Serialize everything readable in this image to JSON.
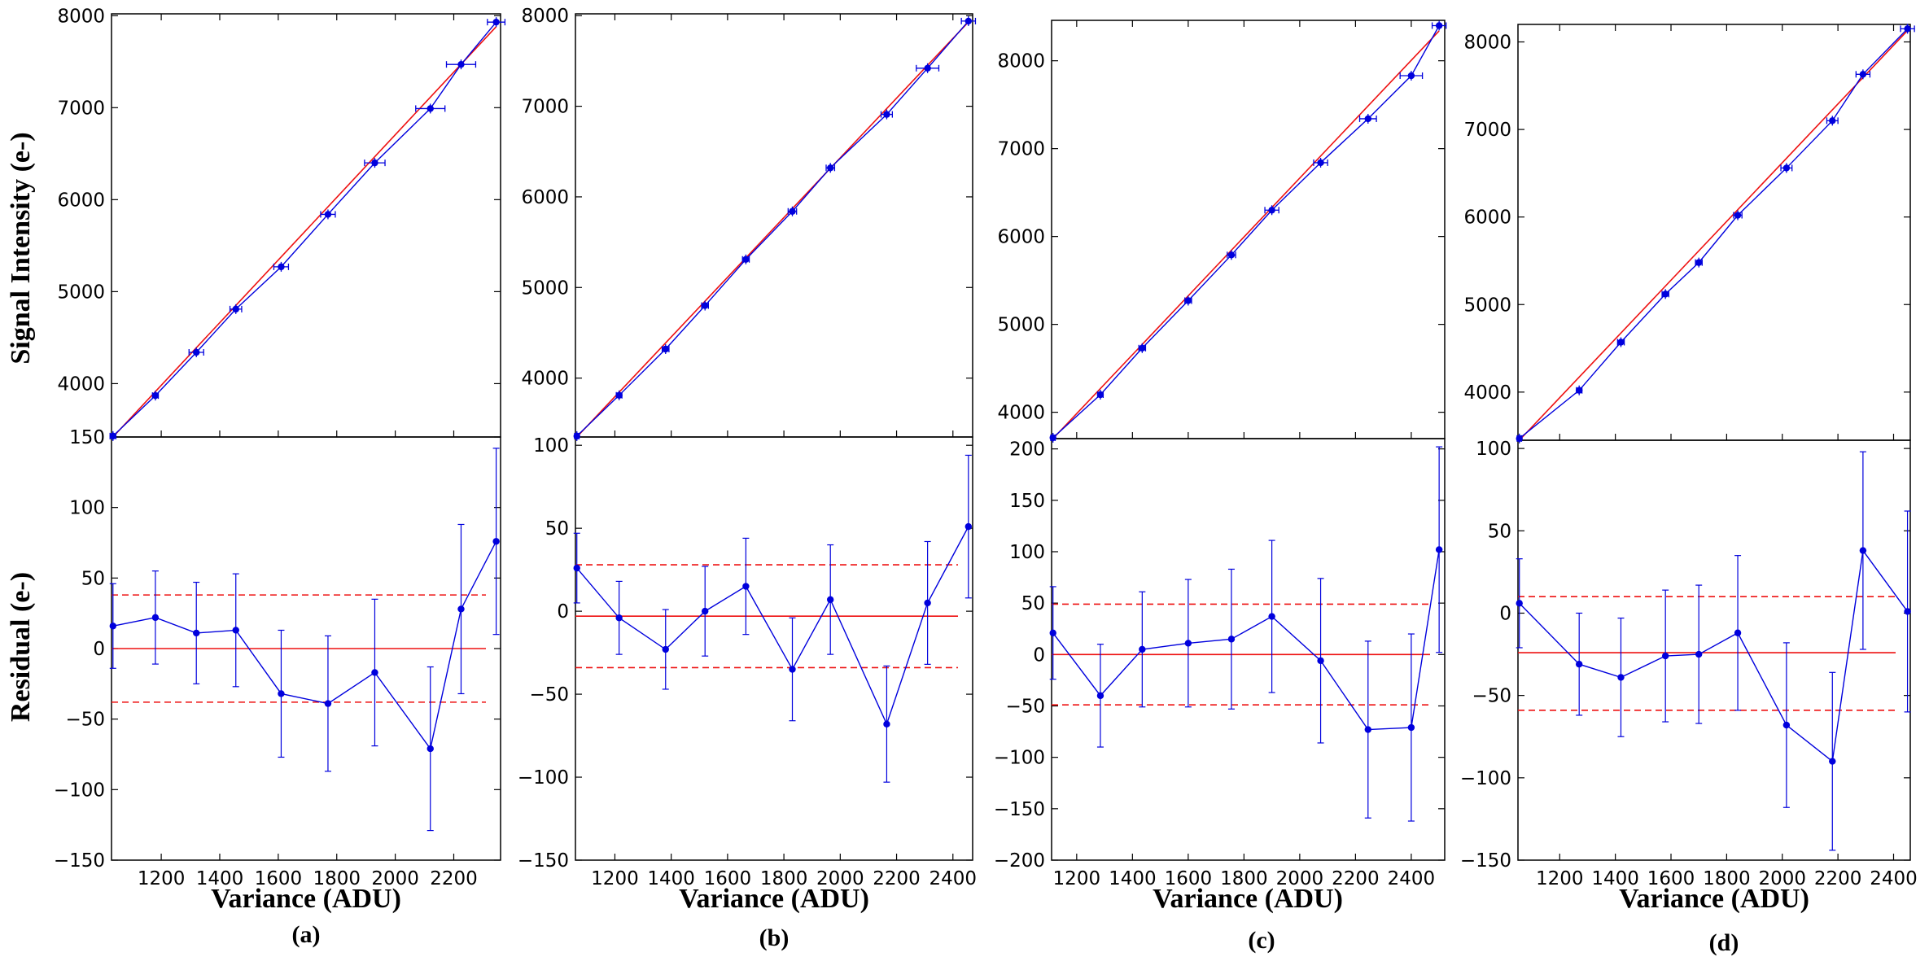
{
  "figure": {
    "ylabel_top": "Signal Intensity (e-)",
    "ylabel_bottom": "Residual  (e-)",
    "colors": {
      "data": "#0000dd",
      "fit": "#ee1111",
      "frame": "#000000"
    }
  },
  "chart_data": [
    {
      "type": "scatter",
      "panel_label": "(a)",
      "xlabel": "Variance (ADU)",
      "xlim": [
        1030,
        2360
      ],
      "xticks": [
        1200,
        1400,
        1600,
        1800,
        2000,
        2200
      ],
      "top": {
        "ylabel": "Signal Intensity (e-)",
        "ylim": [
          3420,
          8020
        ],
        "yticks": [
          4000,
          5000,
          6000,
          7000,
          8000
        ],
        "x": [
          1035,
          1180,
          1320,
          1455,
          1610,
          1770,
          1930,
          2120,
          2225,
          2345
        ],
        "y": [
          3430,
          3870,
          4340,
          4810,
          5270,
          5840,
          6400,
          6990,
          7470,
          7930
        ],
        "xerr": [
          10,
          10,
          25,
          20,
          25,
          25,
          35,
          50,
          50,
          30
        ],
        "fit": {
          "x": [
            1035,
            2345
          ],
          "y": [
            3420,
            7880
          ]
        }
      },
      "bottom": {
        "ylabel": "Residual  (e-)",
        "ylim": [
          -150,
          150
        ],
        "yticks": [
          -150,
          -100,
          -50,
          0,
          50,
          100,
          150
        ],
        "x": [
          1035,
          1180,
          1320,
          1455,
          1610,
          1770,
          1930,
          2120,
          2225,
          2345
        ],
        "y": [
          16,
          22,
          11,
          13,
          -32,
          -39,
          -17,
          -71,
          28,
          76
        ],
        "yerr": [
          30,
          33,
          36,
          40,
          45,
          48,
          52,
          58,
          60,
          66
        ],
        "fit_level": 0,
        "band": [
          -38,
          38
        ]
      }
    },
    {
      "type": "scatter",
      "panel_label": "(b)",
      "xlabel": "Variance (ADU)",
      "xlim": [
        1060,
        2470
      ],
      "xticks": [
        1200,
        1400,
        1600,
        1800,
        2000,
        2200,
        2400
      ],
      "top": {
        "ylabel": "Signal Intensity (e-)",
        "ylim": [
          3350,
          8020
        ],
        "yticks": [
          4000,
          5000,
          6000,
          7000,
          8000
        ],
        "x": [
          1065,
          1215,
          1380,
          1520,
          1665,
          1830,
          1965,
          2165,
          2310,
          2455
        ],
        "y": [
          3360,
          3810,
          4320,
          4800,
          5310,
          5840,
          6320,
          6910,
          7420,
          7940
        ],
        "xerr": [
          8,
          10,
          12,
          12,
          12,
          15,
          15,
          20,
          40,
          25
        ],
        "fit": {
          "x": [
            1065,
            2455
          ],
          "y": [
            3350,
            7930
          ]
        }
      },
      "bottom": {
        "ylabel": "Residual  (e-)",
        "ylim": [
          -150,
          105
        ],
        "yticks": [
          -150,
          -100,
          -50,
          0,
          50,
          100
        ],
        "x": [
          1065,
          1215,
          1380,
          1520,
          1665,
          1830,
          1965,
          2165,
          2310,
          2455
        ],
        "y": [
          26,
          -4,
          -23,
          0,
          15,
          -35,
          7,
          -68,
          5,
          51
        ],
        "yerr": [
          21,
          22,
          24,
          27,
          29,
          31,
          33,
          35,
          37,
          43
        ],
        "fit_level": -3,
        "band": [
          -34,
          28
        ]
      }
    },
    {
      "type": "scatter",
      "panel_label": "(c)",
      "xlabel": "Variance (ADU)",
      "xlim": [
        1110,
        2520
      ],
      "xticks": [
        1200,
        1400,
        1600,
        1800,
        2000,
        2200,
        2400
      ],
      "top": {
        "ylabel": "Signal Intensity (e-)",
        "ylim": [
          3700,
          8460
        ],
        "yticks": [
          4000,
          5000,
          6000,
          7000,
          8000
        ],
        "x": [
          1115,
          1285,
          1435,
          1600,
          1755,
          1900,
          2075,
          2245,
          2400,
          2500
        ],
        "y": [
          3710,
          4200,
          4730,
          5270,
          5790,
          6300,
          6840,
          7340,
          7830,
          8400
        ],
        "xerr": [
          8,
          10,
          12,
          12,
          15,
          25,
          25,
          30,
          40,
          25
        ],
        "fit": {
          "x": [
            1115,
            2500
          ],
          "y": [
            3700,
            8340
          ]
        }
      },
      "bottom": {
        "ylabel": "Residual  (e-)",
        "ylim": [
          -200,
          210
        ],
        "yticks": [
          -200,
          -150,
          -100,
          -50,
          0,
          50,
          100,
          150,
          200
        ],
        "x": [
          1115,
          1285,
          1435,
          1600,
          1755,
          1900,
          2075,
          2245,
          2400,
          2500
        ],
        "y": [
          21,
          -40,
          5,
          11,
          15,
          37,
          -6,
          -73,
          -71,
          102
        ],
        "yerr": [
          45,
          50,
          56,
          62,
          68,
          74,
          80,
          86,
          91,
          100
        ],
        "fit_level": 0,
        "band": [
          -49,
          49
        ]
      }
    },
    {
      "type": "scatter",
      "panel_label": "(d)",
      "xlabel": "Variance (ADU)",
      "xlim": [
        1050,
        2460
      ],
      "xticks": [
        1200,
        1400,
        1600,
        1800,
        2000,
        2200,
        2400
      ],
      "top": {
        "ylabel": "Signal Intensity (e-)",
        "ylim": [
          3450,
          8200
        ],
        "yticks": [
          4000,
          5000,
          6000,
          7000,
          8000
        ],
        "x": [
          1055,
          1270,
          1420,
          1580,
          1700,
          1840,
          2015,
          2180,
          2290,
          2450
        ],
        "y": [
          3470,
          4020,
          4570,
          5120,
          5480,
          6020,
          6560,
          7100,
          7630,
          8150
        ],
        "xerr": [
          8,
          10,
          12,
          12,
          12,
          15,
          20,
          20,
          25,
          25
        ],
        "fit": {
          "x": [
            1055,
            2450
          ],
          "y": [
            3450,
            8130
          ]
        }
      },
      "bottom": {
        "ylabel": "Residual  (e-)",
        "ylim": [
          -150,
          105
        ],
        "yticks": [
          -150,
          -100,
          -50,
          0,
          50,
          100
        ],
        "x": [
          1055,
          1270,
          1420,
          1580,
          1700,
          1840,
          2015,
          2180,
          2290,
          2450
        ],
        "y": [
          6,
          -31,
          -39,
          -26,
          -25,
          -12,
          -68,
          -90,
          38,
          1
        ],
        "yerr": [
          27,
          31,
          36,
          40,
          42,
          47,
          50,
          54,
          60,
          61
        ],
        "fit_level": -24,
        "band": [
          -59,
          10
        ]
      }
    }
  ]
}
